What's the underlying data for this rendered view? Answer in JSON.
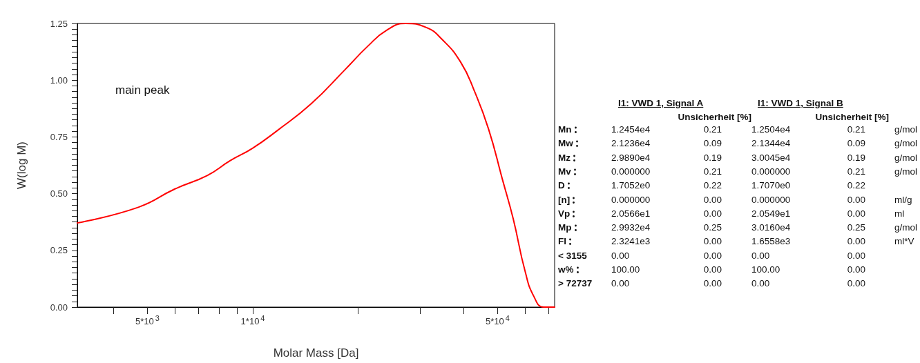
{
  "chart_data": [
    {
      "type": "line",
      "xlabel": "Molar Mass [Da]",
      "ylabel": "W(log M)",
      "log": "x",
      "marker": "none",
      "line_style": "solid",
      "annotations": [
        "main peak"
      ],
      "xlim": [
        3155,
        72737
      ],
      "ylim": [
        0,
        1.25
      ],
      "xticks": [
        {
          "value": 4000,
          "label": null
        },
        {
          "value": 5000,
          "label": "5*10$^{3}$"
        },
        {
          "value": 6000,
          "label": null
        },
        {
          "value": 7000,
          "label": null
        },
        {
          "value": 8000,
          "label": null
        },
        {
          "value": 9000,
          "label": null
        },
        {
          "value": 10000,
          "label": "1*10$^{4}$"
        },
        {
          "value": 20000,
          "label": null
        },
        {
          "value": 30000,
          "label": null
        },
        {
          "value": 40000,
          "label": null
        },
        {
          "value": 50000,
          "label": "5*10$^{4}$"
        },
        {
          "value": 60000,
          "label": null
        },
        {
          "value": 70000,
          "label": null
        }
      ],
      "yticks": [
        {
          "value": 0,
          "label": "0.00"
        },
        {
          "value": 0.025,
          "label": null
        },
        {
          "value": 0.05,
          "label": null
        },
        {
          "value": 0.075,
          "label": null
        },
        {
          "value": 0.1,
          "label": null
        },
        {
          "value": 0.125,
          "label": null
        },
        {
          "value": 0.15,
          "label": null
        },
        {
          "value": 0.175,
          "label": null
        },
        {
          "value": 0.2,
          "label": null
        },
        {
          "value": 0.225,
          "label": null
        },
        {
          "value": 0.25,
          "label": "0.25"
        },
        {
          "value": 0.275,
          "label": null
        },
        {
          "value": 0.3,
          "label": null
        },
        {
          "value": 0.325,
          "label": null
        },
        {
          "value": 0.35,
          "label": null
        },
        {
          "value": 0.375,
          "label": null
        },
        {
          "value": 0.4,
          "label": null
        },
        {
          "value": 0.425,
          "label": null
        },
        {
          "value": 0.45,
          "label": null
        },
        {
          "value": 0.475,
          "label": null
        },
        {
          "value": 0.5,
          "label": "0.50"
        },
        {
          "value": 0.525,
          "label": null
        },
        {
          "value": 0.55,
          "label": null
        },
        {
          "value": 0.575,
          "label": null
        },
        {
          "value": 0.6,
          "label": null
        },
        {
          "value": 0.625,
          "label": null
        },
        {
          "value": 0.65,
          "label": null
        },
        {
          "value": 0.675,
          "label": null
        },
        {
          "value": 0.7,
          "label": null
        },
        {
          "value": 0.725,
          "label": null
        },
        {
          "value": 0.75,
          "label": "0.75"
        },
        {
          "value": 0.775,
          "label": null
        },
        {
          "value": 0.8,
          "label": null
        },
        {
          "value": 0.825,
          "label": null
        },
        {
          "value": 0.85,
          "label": null
        },
        {
          "value": 0.875,
          "label": null
        },
        {
          "value": 0.9,
          "label": null
        },
        {
          "value": 0.925,
          "label": null
        },
        {
          "value": 0.95,
          "label": null
        },
        {
          "value": 0.975,
          "label": null
        },
        {
          "value": 1.0,
          "label": "1.00"
        },
        {
          "value": 1.025,
          "label": null
        },
        {
          "value": 1.05,
          "label": null
        },
        {
          "value": 1.075,
          "label": null
        },
        {
          "value": 1.1,
          "label": null
        },
        {
          "value": 1.125,
          "label": null
        },
        {
          "value": 1.15,
          "label": null
        },
        {
          "value": 1.175,
          "label": null
        },
        {
          "value": 1.2,
          "label": null
        },
        {
          "value": 1.225,
          "label": null
        },
        {
          "value": 1.25,
          "label": "1.25"
        }
      ],
      "series": [
        {
          "color": "#ff0000",
          "x": [
            3155,
            4710,
            5980,
            7410,
            8610,
            9980,
            11700,
            14700,
            18400,
            21300,
            24100,
            27300,
            31300,
            34700,
            39200,
            43000,
            47100,
            51600,
            55400,
            59900,
            63500,
            67700,
            72737
          ],
          "values": [
            0.371,
            0.44,
            0.52,
            0.58,
            0.645,
            0.7,
            0.776,
            0.897,
            1.049,
            1.15,
            1.22,
            1.25,
            1.232,
            1.18,
            1.08,
            0.949,
            0.785,
            0.563,
            0.389,
            0.158,
            0.046,
            0,
            0
          ]
        }
      ]
    },
    {
      "type": "other",
      "categories": [
        "Mn",
        "Mw",
        "Mz",
        "Mv",
        "D",
        "[n]",
        "Vp",
        "Mp",
        "FI",
        "< 3155",
        "w%",
        "> 72737"
      ],
      "y2_categories": [
        "g/mol",
        "g/mol",
        "g/mol",
        "g/mol",
        null,
        "ml/g",
        "ml",
        "g/mol",
        "ml*V",
        null,
        null,
        null
      ],
      "series": [
        {
          "name": "I1: VWD 1, Signal A",
          "values": [
            12454,
            21236,
            29890,
            0,
            1.7052,
            0,
            20.566,
            29932,
            2324.1,
            0,
            100,
            0
          ],
          "value_labels": [
            "1.2454e4",
            "2.1236e4",
            "2.9890e4",
            "0.000000",
            "1.7052e0",
            "0.000000",
            "2.0566e1",
            "2.9932e4",
            "2.3241e3",
            "0.00",
            "100.00",
            "0.00"
          ]
        },
        {
          "name": "Unsicherheit [%]",
          "values": [
            0.21,
            0.09,
            0.19,
            0.21,
            0.22,
            0,
            0,
            0.25,
            0,
            0,
            0,
            0
          ],
          "value_labels": [
            "0.21",
            "0.09",
            "0.19",
            "0.21",
            "0.22",
            "0.00",
            "0.00",
            "0.25",
            "0.00",
            "0.00",
            "0.00",
            "0.00"
          ]
        },
        {
          "name": "I1: VWD 1, Signal B",
          "values": [
            12504,
            21344,
            30045,
            0,
            1.707,
            0,
            20.549,
            30160,
            1655.8,
            0,
            100,
            0
          ],
          "value_labels": [
            "1.2504e4",
            "2.1344e4",
            "3.0045e4",
            "0.000000",
            "1.7070e0",
            "0.000000",
            "2.0549e1",
            "3.0160e4",
            "1.6558e3",
            "0.00",
            "100.00",
            "0.00"
          ]
        },
        {
          "name": "Unsicherheit [%]",
          "values": [
            0.21,
            0.09,
            0.19,
            0.21,
            0.22,
            0,
            0,
            0.25,
            0,
            0,
            0,
            0
          ],
          "value_labels": [
            "0.21",
            "0.09",
            "0.19",
            "0.21",
            "0.22",
            "0.00",
            "0.00",
            "0.25",
            "0.00",
            "0.00",
            "0.00",
            "0.00"
          ]
        }
      ]
    }
  ]
}
